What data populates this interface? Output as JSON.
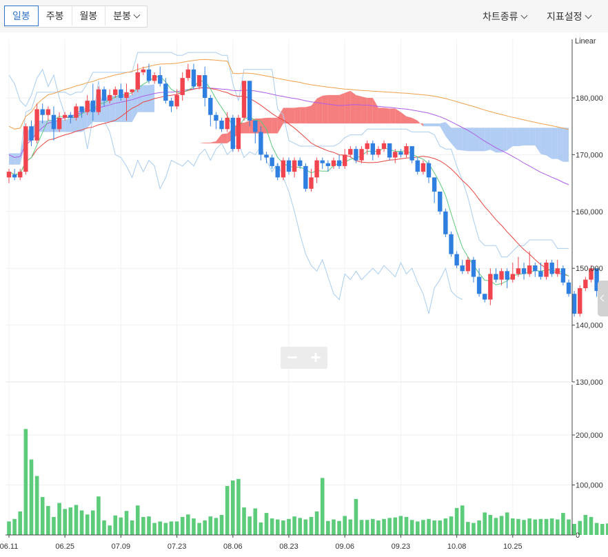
{
  "toolbar": {
    "tabs": [
      {
        "label": "일봉",
        "active": true
      },
      {
        "label": "주봉",
        "active": false
      },
      {
        "label": "월봉",
        "active": false
      },
      {
        "label": "분봉",
        "active": false
      }
    ],
    "chart_type_menu": "차트종류",
    "indicator_menu": "지표설정",
    "zoom_out": "−",
    "zoom_in": "+"
  },
  "colors": {
    "up": "#f0454f",
    "down": "#2f7fe0",
    "volume": "#5ccb7a",
    "ma5": "#5cc97c",
    "ma20": "#e8453f",
    "ma60": "#b05ce6",
    "ma120": "#f0a04b",
    "cloud_up": "#f47070",
    "cloud_down": "#a9c8f3",
    "ichimoku_line": "#a8cdf0"
  },
  "chart_data": {
    "type": "candlestick",
    "scale_label": "Linear",
    "price_axis": {
      "ticks": [
        130000,
        140000,
        150000,
        160000,
        170000,
        180000
      ],
      "tick_labels": [
        "130,000",
        "140,000",
        "150,000",
        "160,000",
        "170,000",
        "180,000"
      ],
      "range": [
        130000,
        190000
      ]
    },
    "volume_axis": {
      "ticks": [
        0,
        100000,
        200000
      ],
      "tick_labels": [
        "0",
        "100,000",
        "200,000"
      ],
      "range": [
        0,
        240000
      ]
    },
    "x_ticks": [
      {
        "index": 0,
        "label": "06.11"
      },
      {
        "index": 10,
        "label": "06.25"
      },
      {
        "index": 20,
        "label": "07.09"
      },
      {
        "index": 30,
        "label": "07.23"
      },
      {
        "index": 40,
        "label": "08.06"
      },
      {
        "index": 50,
        "label": "08.23"
      },
      {
        "index": 60,
        "label": "09.06"
      },
      {
        "index": 70,
        "label": "09.23"
      },
      {
        "index": 80,
        "label": "10.08"
      },
      {
        "index": 90,
        "label": "10.25"
      }
    ],
    "candles": [
      [
        166000,
        167000,
        165000,
        167500
      ],
      [
        166500,
        166000,
        165500,
        167500
      ],
      [
        166000,
        167000,
        165500,
        167500
      ],
      [
        167000,
        175000,
        166500,
        175500
      ],
      [
        175000,
        172500,
        171500,
        176000
      ],
      [
        172500,
        178000,
        172000,
        179000
      ],
      [
        178000,
        177000,
        175500,
        179000
      ],
      [
        177000,
        178000,
        176000,
        178500
      ],
      [
        177000,
        174500,
        172500,
        178500
      ],
      [
        174500,
        176500,
        174000,
        177500
      ],
      [
        176500,
        177000,
        176000,
        177500
      ],
      [
        177000,
        176500,
        175500,
        177500
      ],
      [
        176500,
        178500,
        176000,
        179000
      ],
      [
        178500,
        177500,
        176500,
        178500
      ],
      [
        177500,
        179500,
        177000,
        180500
      ],
      [
        179500,
        177500,
        176000,
        182500
      ],
      [
        177500,
        181500,
        177000,
        182000
      ],
      [
        181500,
        179500,
        178500,
        182000
      ],
      [
        179500,
        180500,
        179000,
        181500
      ],
      [
        180500,
        181500,
        180000,
        182000
      ],
      [
        181500,
        180000,
        179500,
        182500
      ],
      [
        180000,
        181000,
        176000,
        182500
      ],
      [
        181000,
        181500,
        180500,
        181500
      ],
      [
        181500,
        184500,
        181000,
        186000
      ],
      [
        184500,
        185000,
        184000,
        185500
      ],
      [
        185000,
        183000,
        182500,
        186000
      ],
      [
        183000,
        184000,
        182500,
        184500
      ],
      [
        184000,
        182500,
        182000,
        185500
      ],
      [
        182500,
        179500,
        179000,
        183500
      ],
      [
        179500,
        178500,
        177500,
        180000
      ],
      [
        178500,
        180500,
        178000,
        181500
      ],
      [
        180500,
        183500,
        179500,
        184500
      ],
      [
        183500,
        185000,
        183000,
        186000
      ],
      [
        185000,
        182000,
        181500,
        186000
      ],
      [
        182000,
        184000,
        181500,
        184000
      ],
      [
        184000,
        180000,
        178500,
        185500
      ],
      [
        180000,
        177000,
        175000,
        180500
      ],
      [
        177000,
        176000,
        174500,
        177500
      ],
      [
        176000,
        174500,
        174000,
        176500
      ],
      [
        174500,
        176500,
        174000,
        177500
      ],
      [
        176500,
        171000,
        170500,
        177000
      ],
      [
        171000,
        176500,
        170500,
        177000
      ],
      [
        176500,
        183000,
        176000,
        183000
      ],
      [
        183000,
        176000,
        175000,
        183000
      ],
      [
        176000,
        174000,
        172000,
        176000
      ],
      [
        174000,
        170000,
        169000,
        175000
      ],
      [
        170000,
        169500,
        168500,
        170500
      ],
      [
        169500,
        168000,
        167500,
        170000
      ],
      [
        168000,
        166000,
        165500,
        168500
      ],
      [
        166000,
        169000,
        165500,
        169500
      ],
      [
        169000,
        167000,
        166500,
        169500
      ],
      [
        167000,
        169000,
        166000,
        169500
      ],
      [
        169000,
        168000,
        167500,
        169500
      ],
      [
        168000,
        164000,
        163500,
        168500
      ],
      [
        164000,
        166000,
        163500,
        167500
      ],
      [
        166000,
        169000,
        165000,
        169500
      ],
      [
        169000,
        168500,
        167500,
        169500
      ],
      [
        168500,
        168000,
        167000,
        169000
      ],
      [
        168000,
        169000,
        167500,
        169500
      ],
      [
        169000,
        168000,
        167500,
        170000
      ],
      [
        168000,
        170000,
        167500,
        171000
      ],
      [
        170000,
        171000,
        169500,
        171500
      ],
      [
        171000,
        169000,
        168500,
        171500
      ],
      [
        169000,
        171000,
        168500,
        171500
      ],
      [
        171000,
        172000,
        170000,
        172500
      ],
      [
        172000,
        170000,
        169000,
        172500
      ],
      [
        170000,
        171000,
        169500,
        171500
      ],
      [
        171000,
        172000,
        170500,
        172500
      ],
      [
        172000,
        169500,
        169000,
        172000
      ],
      [
        169500,
        170500,
        168500,
        171000
      ],
      [
        170500,
        170000,
        169500,
        171000
      ],
      [
        170000,
        171500,
        169500,
        172000
      ],
      [
        171500,
        169000,
        168500,
        171500
      ],
      [
        169000,
        167000,
        166500,
        169500
      ],
      [
        167000,
        168500,
        166500,
        169000
      ],
      [
        168500,
        166000,
        165000,
        169000
      ],
      [
        166000,
        163500,
        161500,
        166000
      ],
      [
        163500,
        160000,
        159500,
        163500
      ],
      [
        160000,
        156000,
        155500,
        160500
      ],
      [
        156000,
        152500,
        152000,
        156500
      ],
      [
        152500,
        150500,
        150000,
        153000
      ],
      [
        150500,
        149500,
        149000,
        151500
      ],
      [
        149500,
        151500,
        149000,
        152000
      ],
      [
        151500,
        148500,
        147500,
        152000
      ],
      [
        148500,
        145500,
        145000,
        150000
      ],
      [
        145500,
        144500,
        144000,
        145500
      ],
      [
        144500,
        149000,
        143500,
        150000
      ],
      [
        149000,
        148000,
        147500,
        150000
      ],
      [
        148000,
        149500,
        147000,
        150000
      ],
      [
        149500,
        148000,
        146500,
        150000
      ],
      [
        148000,
        149000,
        147500,
        151000
      ],
      [
        149000,
        150000,
        148500,
        152000
      ],
      [
        150000,
        149000,
        148000,
        151000
      ],
      [
        149000,
        150500,
        148500,
        153000
      ],
      [
        150500,
        149500,
        148500,
        151000
      ],
      [
        149500,
        148500,
        148000,
        151000
      ],
      [
        148500,
        151000,
        148000,
        151500
      ],
      [
        151000,
        149000,
        148500,
        151500
      ],
      [
        149000,
        150000,
        148500,
        151500
      ],
      [
        150000,
        147500,
        147000,
        150500
      ],
      [
        147500,
        145500,
        145000,
        148000
      ],
      [
        145500,
        142000,
        141500,
        146000
      ],
      [
        142000,
        146500,
        141500,
        147000
      ],
      [
        146500,
        148000,
        146000,
        148500
      ],
      [
        148000,
        150000,
        147500,
        150500
      ],
      [
        150000,
        146000,
        145000,
        150000
      ],
      [
        146000,
        145000,
        144000,
        147500
      ],
      [
        145000,
        144500,
        143500,
        146000
      ]
    ],
    "volume": [
      27000,
      32000,
      47000,
      212000,
      151000,
      118000,
      76000,
      58000,
      36000,
      64000,
      52000,
      55000,
      60000,
      49000,
      41000,
      49000,
      77000,
      29000,
      19000,
      39000,
      35000,
      48000,
      29000,
      59000,
      36000,
      37000,
      24000,
      27000,
      24000,
      27000,
      27000,
      36000,
      41000,
      33000,
      24000,
      29000,
      37000,
      34000,
      40000,
      98000,
      109000,
      112000,
      55000,
      37000,
      53000,
      25000,
      44000,
      33000,
      31000,
      29000,
      32000,
      37000,
      34000,
      31000,
      36000,
      47000,
      114000,
      28000,
      31000,
      28000,
      38000,
      31000,
      72000,
      30000,
      30000,
      32000,
      29000,
      32000,
      34000,
      35000,
      38000,
      36000,
      30000,
      27000,
      30000,
      32000,
      29000,
      29000,
      33000,
      37000,
      54000,
      59000,
      26000,
      24000,
      29000,
      45000,
      40000,
      34000,
      38000,
      45000,
      33000,
      32000,
      30000,
      33000,
      31000,
      32000,
      32000,
      33000,
      31000,
      44000,
      31000,
      22000,
      28000,
      40000,
      36000,
      24000,
      22000,
      23000
    ]
  }
}
